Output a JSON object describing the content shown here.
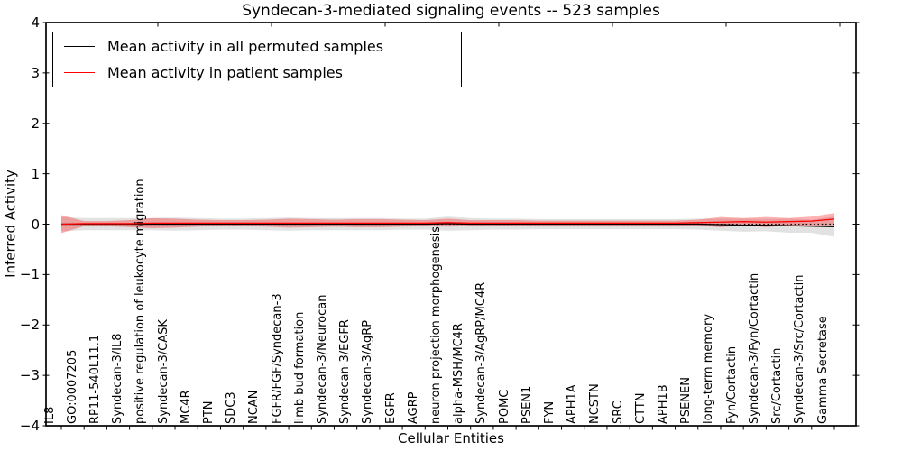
{
  "title": "Syndecan-3-mediated signaling events -- 523 samples",
  "axes": {
    "xlabel": "Cellular Entities",
    "ylabel": "Inferred Activity",
    "ytick_labels": [
      "4",
      "3",
      "2",
      "1",
      "0",
      "−1",
      "−2",
      "−3",
      "−4"
    ],
    "ytick_values": [
      4,
      3,
      2,
      1,
      0,
      -1,
      -2,
      -3,
      -4
    ],
    "top_tick_x": [
      175,
      301,
      427,
      553,
      679,
      805,
      931
    ]
  },
  "legend": {
    "entries": [
      {
        "label": "Mean activity in all permuted samples",
        "color": "#000000"
      },
      {
        "label": "Mean activity in patient samples",
        "color": "#ff0000"
      }
    ]
  },
  "chart_data": {
    "type": "line",
    "title": "Syndecan-3-mediated signaling events -- 523 samples",
    "xlabel": "Cellular Entities",
    "ylabel": "Inferred Activity",
    "ylim": [
      -4,
      4
    ],
    "grid": false,
    "legend_position": "upper left",
    "zero_reference_line": true,
    "xtick_label_rotation": 90,
    "categories": [
      "IL8",
      "GO:0007205",
      "RP11-540L11.1",
      "Syndecan-3/IL8",
      "positive regulation of leukocyte migration",
      "Syndecan-3/CASK",
      "MC4R",
      "PTN",
      "SDC3",
      "NCAN",
      "FGFR/FGF/Syndecan-3",
      "limb bud formation",
      "Syndecan-3/Neurocan",
      "Syndecan-3/EGFR",
      "Syndecan-3/AgRP",
      "EGFR",
      "AGRP",
      "neuron projection morphogenesis",
      "alpha-MSH/MC4R",
      "Syndecan-3/AgRP/MC4R",
      "POMC",
      "PSEN1",
      "FYN",
      "APH1A",
      "NCSTN",
      "SRC",
      "CTTN",
      "APH1B",
      "PSENEN",
      "long-term memory",
      "Fyn/Cortactin",
      "Syndecan-3/Fyn/Cortactin",
      "Src/Cortactin",
      "Syndecan-3/Src/Cortactin",
      "Gamma Secretase"
    ],
    "series": [
      {
        "name": "Mean activity in all permuted samples",
        "color": "#000000",
        "band_color": "#9e9e9e",
        "band_opacity": 0.3,
        "values": [
          0,
          0,
          0,
          0,
          0,
          0,
          0,
          0,
          0,
          0,
          0,
          0,
          0,
          0,
          0,
          0,
          0,
          0.01,
          0,
          0,
          0,
          0,
          0,
          0,
          0,
          0,
          0,
          0,
          0,
          -0.01,
          -0.02,
          -0.02,
          -0.03,
          -0.04,
          -0.05
        ],
        "band_halfwidth": [
          0.14,
          0.12,
          0.12,
          0.12,
          0.12,
          0.13,
          0.12,
          0.11,
          0.11,
          0.12,
          0.13,
          0.12,
          0.12,
          0.12,
          0.12,
          0.11,
          0.11,
          0.14,
          0.12,
          0.11,
          0.11,
          0.1,
          0.1,
          0.1,
          0.1,
          0.1,
          0.1,
          0.1,
          0.11,
          0.12,
          0.13,
          0.12,
          0.14,
          0.13,
          0.2
        ]
      },
      {
        "name": "Mean activity in patient samples",
        "color": "#ff0000",
        "band_color": "#ff0000",
        "band_opacity": 0.3,
        "values": [
          0,
          0.01,
          0.01,
          0.01,
          0.02,
          0.02,
          0.02,
          0.02,
          0.02,
          0.02,
          0.02,
          0.02,
          0.02,
          0.02,
          0.02,
          0.02,
          0.02,
          0.03,
          0.02,
          0.02,
          0.02,
          0.02,
          0.02,
          0.02,
          0.02,
          0.02,
          0.02,
          0.02,
          0.03,
          0.04,
          0.05,
          0.04,
          0.05,
          0.06,
          0.1
        ],
        "band_halfwidth": [
          0.18,
          0.05,
          0.05,
          0.07,
          0.1,
          0.09,
          0.07,
          0.06,
          0.06,
          0.07,
          0.09,
          0.08,
          0.07,
          0.08,
          0.08,
          0.07,
          0.06,
          0.08,
          0.06,
          0.06,
          0.06,
          0.05,
          0.05,
          0.05,
          0.05,
          0.05,
          0.05,
          0.05,
          0.06,
          0.1,
          0.07,
          0.1,
          0.07,
          0.09,
          0.12
        ]
      }
    ]
  }
}
